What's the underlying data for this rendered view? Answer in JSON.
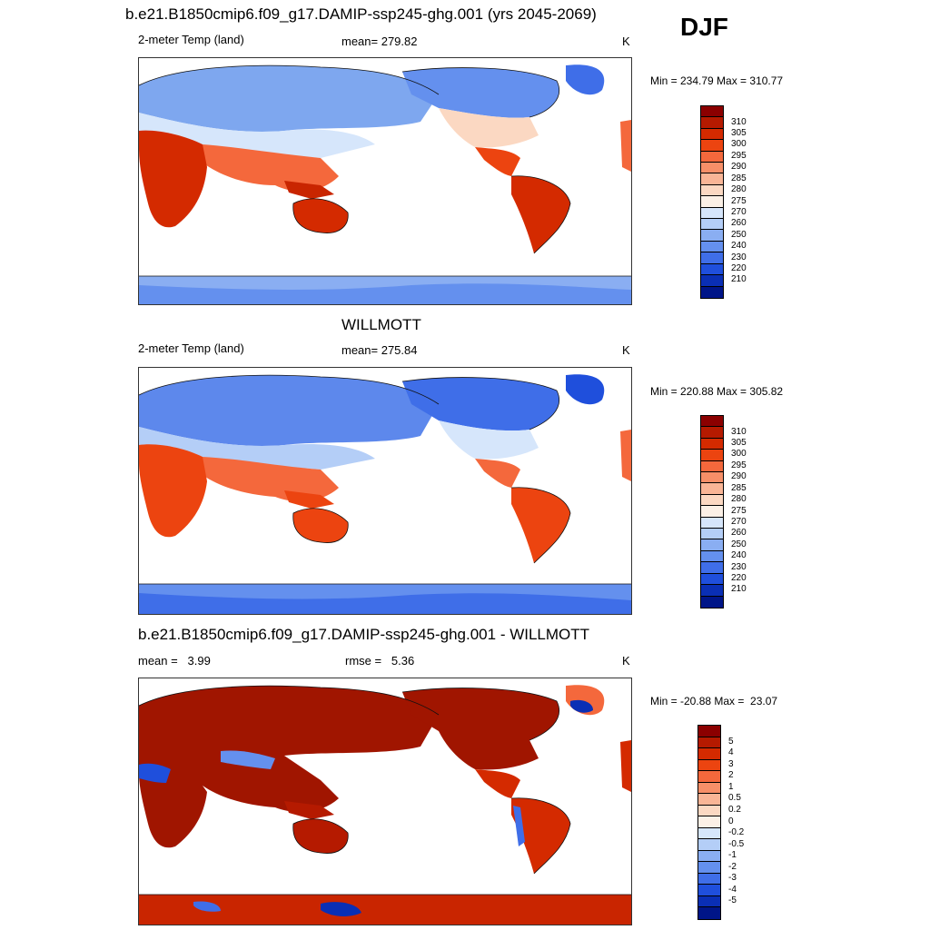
{
  "season": "DJF",
  "panels": [
    {
      "title": "b.e21.B1850cmip6.f09_g17.DAMIP-ssp245-ghg.001 (yrs 2045-2069)",
      "left_label": "2-meter Temp (land)",
      "center_label": "mean= 279.82",
      "units": "K",
      "minmax": "Min = 234.79 Max = 310.77"
    },
    {
      "title": "WILLMOTT",
      "left_label": "2-meter Temp (land)",
      "center_label": "mean= 275.84",
      "units": "K",
      "minmax": "Min = 220.88 Max = 305.82"
    },
    {
      "title": "b.e21.B1850cmip6.f09_g17.DAMIP-ssp245-ghg.001 - WILLMOTT",
      "left_label": "mean =   3.99",
      "center_label": "rmse =   5.36",
      "units": "K",
      "minmax": "Min = -20.88 Max =  23.07"
    }
  ],
  "colorbars": {
    "temp": {
      "labels": [
        "310",
        "305",
        "300",
        "295",
        "290",
        "285",
        "280",
        "275",
        "270",
        "260",
        "250",
        "240",
        "230",
        "220",
        "210"
      ],
      "colors": [
        "#8b0000",
        "#b51a00",
        "#d42a00",
        "#ec4410",
        "#f4683c",
        "#f78f68",
        "#f9b596",
        "#fbd8c2",
        "#fbf0e6",
        "#d6e6fb",
        "#b4cef7",
        "#8aaef2",
        "#6490ee",
        "#3f6ee8",
        "#1f4fdc",
        "#0a2fb5",
        "#001588"
      ],
      "scale": "discrete"
    },
    "diff": {
      "labels": [
        "5",
        "4",
        "3",
        "2",
        "1",
        "0.5",
        "0.2",
        "0",
        "-0.2",
        "-0.5",
        "-1",
        "-2",
        "-3",
        "-4",
        "-5"
      ],
      "colors": [
        "#8b0000",
        "#b51a00",
        "#d42a00",
        "#ec4410",
        "#f4683c",
        "#f78f68",
        "#f9b596",
        "#fbd8c2",
        "#fbf0e6",
        "#d6e6fb",
        "#b4cef7",
        "#8aaef2",
        "#6490ee",
        "#3f6ee8",
        "#1f4fdc",
        "#0a2fb5",
        "#001588"
      ],
      "scale": "discrete"
    }
  },
  "map_colors": {
    "ocean": "#ffffff",
    "coast": "#111111"
  }
}
